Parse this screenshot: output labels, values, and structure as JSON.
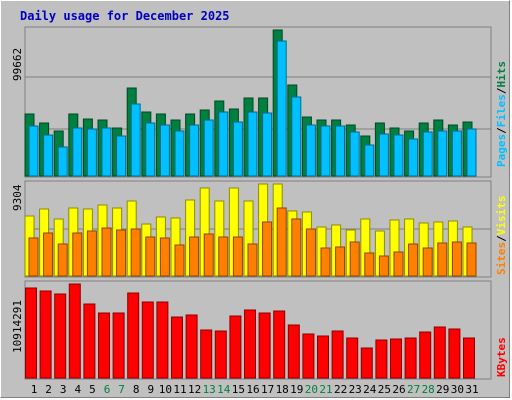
{
  "title": "Daily usage for December 2025",
  "colors": {
    "background": "#c0c0c0",
    "title": "#0000c0",
    "hits": "#008040",
    "files": "#00c0ff",
    "pages": "#00c0ff",
    "visits": "#ffff00",
    "sites": "#ff8000",
    "kbytes": "#ff0000",
    "weekday_label": "#000000",
    "weekend_label": "#008040"
  },
  "chart_data": [
    {
      "type": "bar",
      "name": "hits-files-pages",
      "axis_max_label": "99662",
      "ylim": [
        0,
        99662
      ],
      "side_labels": [
        "Pages",
        "/",
        "Files",
        "/",
        "Hits"
      ],
      "categories": [
        "1",
        "2",
        "3",
        "4",
        "5",
        "6",
        "7",
        "8",
        "9",
        "10",
        "11",
        "12",
        "13",
        "14",
        "15",
        "16",
        "17",
        "18",
        "19",
        "20",
        "21",
        "22",
        "23",
        "24",
        "25",
        "26",
        "27",
        "28",
        "29",
        "30",
        "31"
      ],
      "series": [
        {
          "name": "Hits",
          "values": [
            42000,
            36000,
            31000,
            42000,
            39000,
            38000,
            33000,
            60000,
            44000,
            42000,
            38000,
            42000,
            45000,
            51000,
            46000,
            53000,
            53000,
            99662,
            62000,
            40000,
            38000,
            38000,
            35000,
            27000,
            36000,
            33000,
            31000,
            36000,
            38000,
            35000,
            37000
          ]
        },
        {
          "name": "Files",
          "values": [
            34000,
            28000,
            20000,
            33000,
            32000,
            33000,
            27000,
            49000,
            36000,
            35000,
            31000,
            35000,
            38000,
            44000,
            37000,
            44000,
            43000,
            92000,
            54000,
            35000,
            34000,
            34000,
            30000,
            21000,
            29000,
            28000,
            25000,
            30000,
            31000,
            31000,
            32000
          ]
        }
      ]
    },
    {
      "type": "bar",
      "name": "visits-sites",
      "axis_max_label": "9304",
      "ylim": [
        0,
        9304
      ],
      "side_labels": [
        "Sites",
        "/",
        "Visits"
      ],
      "categories": [
        "1",
        "2",
        "3",
        "4",
        "5",
        "6",
        "7",
        "8",
        "9",
        "10",
        "11",
        "12",
        "13",
        "14",
        "15",
        "16",
        "17",
        "18",
        "19",
        "20",
        "21",
        "22",
        "23",
        "24",
        "25",
        "26",
        "27",
        "28",
        "29",
        "30",
        "31"
      ],
      "series": [
        {
          "name": "Visits",
          "values": [
            6100,
            6800,
            5800,
            6900,
            6800,
            7200,
            6900,
            7600,
            5300,
            6000,
            5900,
            7700,
            8900,
            7600,
            8900,
            7600,
            9300,
            9300,
            6600,
            6500,
            5000,
            5200,
            4700,
            5800,
            4600,
            5700,
            5800,
            5400,
            5500,
            5600,
            5000
          ]
        },
        {
          "name": "Sites",
          "values": [
            3800,
            4300,
            3200,
            4300,
            4600,
            4900,
            4700,
            4800,
            3900,
            3800,
            3100,
            3900,
            4200,
            3900,
            3900,
            3200,
            5500,
            6900,
            5800,
            4800,
            2800,
            2900,
            3400,
            2300,
            2000,
            2400,
            3200,
            2800,
            3300,
            3400,
            3300
          ]
        }
      ]
    },
    {
      "type": "bar",
      "name": "kbytes",
      "axis_max_label": "10914291",
      "ylim": [
        0,
        10914291
      ],
      "side_labels": [
        "KBytes"
      ],
      "categories": [
        "1",
        "2",
        "3",
        "4",
        "5",
        "6",
        "7",
        "8",
        "9",
        "10",
        "11",
        "12",
        "13",
        "14",
        "15",
        "16",
        "17",
        "18",
        "19",
        "20",
        "21",
        "22",
        "23",
        "24",
        "25",
        "26",
        "27",
        "28",
        "29",
        "30",
        "31"
      ],
      "series": [
        {
          "name": "KBytes",
          "values": [
            10500000,
            10100000,
            9800000,
            10914291,
            8600000,
            7500000,
            7500000,
            9900000,
            8800000,
            8800000,
            7100000,
            7300000,
            5600000,
            5500000,
            7200000,
            7900000,
            7500000,
            7800000,
            6200000,
            5100000,
            4900000,
            5400000,
            4600000,
            3500000,
            4400000,
            4500000,
            4700000,
            5300000,
            5900000,
            5700000,
            4600000
          ]
        }
      ]
    }
  ],
  "weekend_days": [
    "6",
    "7",
    "13",
    "14",
    "20",
    "21",
    "27",
    "28"
  ]
}
